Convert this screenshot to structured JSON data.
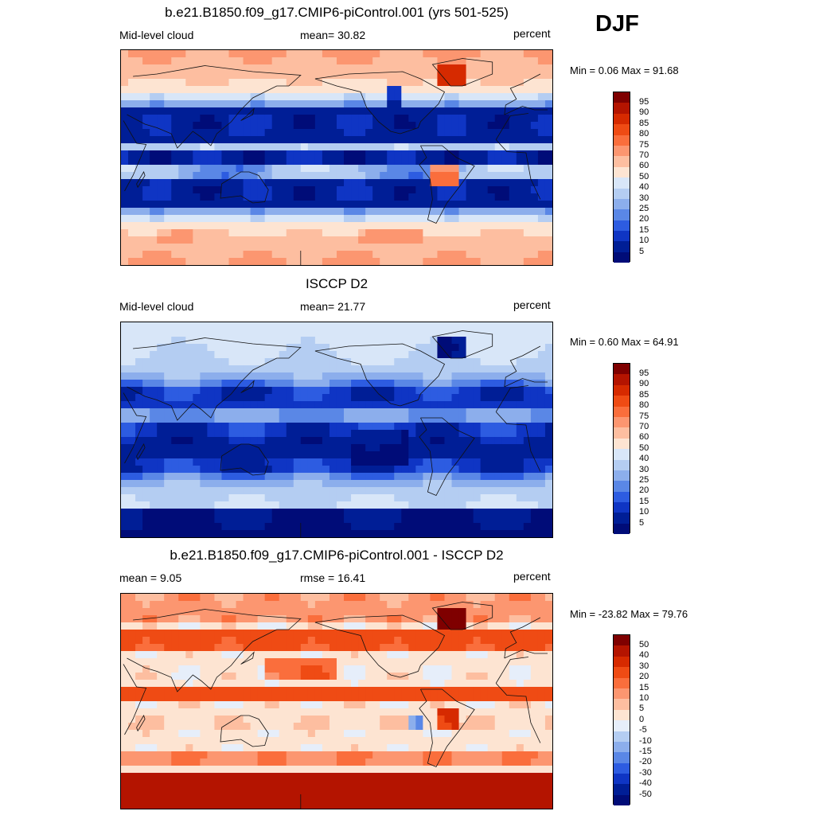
{
  "season": "DJF",
  "panels": [
    {
      "title": "b.e21.B1850.f09_g17.CMIP6-piControl.001 (yrs 501-525)",
      "left_label": "Mid-level cloud",
      "center_label": "mean=  30.82",
      "right_label": "percent",
      "minmax": "Min =   0.06 Max =  91.68",
      "palette": "cloud",
      "colorbar": {
        "labels": [
          "95",
          "90",
          "85",
          "80",
          "75",
          "70",
          "60",
          "50",
          "40",
          "30",
          "25",
          "20",
          "15",
          "10",
          "5"
        ],
        "colors": [
          "#7f0000",
          "#b41400",
          "#d62a00",
          "#ef4b14",
          "#fa6e3c",
          "#fc9670",
          "#fdbea0",
          "#fde4d2",
          "#d8e6f8",
          "#b4cdf2",
          "#8caeec",
          "#5a87e6",
          "#2d5ce1",
          "#0f35c4",
          "#001e96",
          "#000c78"
        ]
      }
    },
    {
      "title": "ISCCP D2",
      "left_label": "Mid-level cloud",
      "center_label": "mean=  21.77",
      "right_label": "percent",
      "minmax": "Min =   0.60 Max =  64.91",
      "palette": "cloud",
      "colorbar": {
        "labels": [
          "95",
          "90",
          "85",
          "80",
          "75",
          "70",
          "60",
          "50",
          "40",
          "30",
          "25",
          "20",
          "15",
          "10",
          "5"
        ],
        "colors": [
          "#7f0000",
          "#b41400",
          "#d62a00",
          "#ef4b14",
          "#fa6e3c",
          "#fc9670",
          "#fdbea0",
          "#fde4d2",
          "#d8e6f8",
          "#b4cdf2",
          "#8caeec",
          "#5a87e6",
          "#2d5ce1",
          "#0f35c4",
          "#001e96",
          "#000c78"
        ]
      }
    },
    {
      "title": "b.e21.B1850.f09_g17.CMIP6-piControl.001 - ISCCP D2",
      "left_label": "mean =   9.05",
      "center_label": "rmse =  16.41",
      "right_label": "percent",
      "minmax": "Min = -23.82 Max =  79.76",
      "palette": "diff",
      "colorbar": {
        "labels": [
          "50",
          "40",
          "30",
          "20",
          "15",
          "10",
          "5",
          "0",
          "-5",
          "-10",
          "-15",
          "-20",
          "-30",
          "-40",
          "-50"
        ],
        "colors": [
          "#7f0000",
          "#b41400",
          "#d62a00",
          "#ef4b14",
          "#fa6e3c",
          "#fc9670",
          "#fdbea0",
          "#fde4d2",
          "#e6eefa",
          "#b4cdf2",
          "#8caeec",
          "#5a87e6",
          "#2d5ce1",
          "#0f35c4",
          "#001e96",
          "#000c78"
        ]
      }
    }
  ]
}
